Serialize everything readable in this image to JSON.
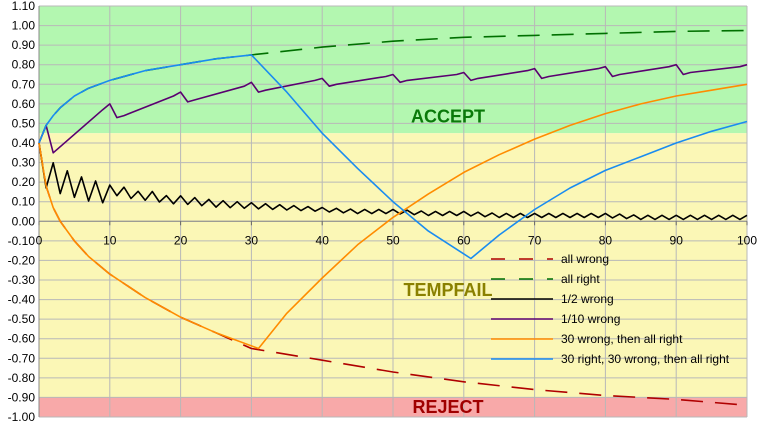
{
  "chart_data": {
    "type": "line",
    "title": "",
    "xlabel": "",
    "ylabel": "",
    "xlim": [
      0,
      100
    ],
    "ylim": [
      -1.0,
      1.1
    ],
    "x_ticks": [
      0,
      10,
      20,
      30,
      40,
      50,
      60,
      70,
      80,
      90,
      100
    ],
    "y_ticks": [
      1.1,
      1.0,
      0.9,
      0.8,
      0.7,
      0.6,
      0.5,
      0.4,
      0.3,
      0.2,
      0.1,
      0.0,
      -0.1,
      -0.2,
      -0.3,
      -0.4,
      -0.5,
      -0.6,
      -0.7,
      -0.8,
      -0.9,
      -1.0
    ],
    "grid": true,
    "legend_position": "bottom-right",
    "zones": [
      {
        "label": "ACCEPT",
        "from": 0.45,
        "to": 1.1,
        "color": "#b3f7b0",
        "text_color": "#0a7a0a",
        "label_y": 0.535
      },
      {
        "label": "TEMPFAIL",
        "from": -0.9,
        "to": 0.45,
        "color": "#fbf7b6",
        "text_color": "#8a8000",
        "label_y": -0.35
      },
      {
        "label": "REJECT",
        "from": -1.0,
        "to": -0.9,
        "color": "#f8a9a9",
        "text_color": "#a00000",
        "label_y": -0.95
      }
    ],
    "series": [
      {
        "name": "all wrong",
        "color": "#b00000",
        "dash": "long",
        "x": [
          0,
          1,
          2,
          3,
          5,
          7,
          10,
          15,
          20,
          25,
          30,
          40,
          50,
          60,
          70,
          80,
          90,
          100
        ],
        "y": [
          0.4,
          0.18,
          0.07,
          0.0,
          -0.1,
          -0.18,
          -0.27,
          -0.39,
          -0.49,
          -0.57,
          -0.65,
          -0.71,
          -0.77,
          -0.82,
          -0.86,
          -0.89,
          -0.91,
          -0.94
        ]
      },
      {
        "name": "all right",
        "color": "#007000",
        "dash": "long",
        "x": [
          0,
          1,
          2,
          3,
          5,
          7,
          10,
          15,
          20,
          25,
          30,
          40,
          50,
          60,
          70,
          80,
          90,
          100
        ],
        "y": [
          0.4,
          0.49,
          0.54,
          0.58,
          0.64,
          0.68,
          0.72,
          0.77,
          0.8,
          0.83,
          0.85,
          0.89,
          0.92,
          0.94,
          0.95,
          0.96,
          0.97,
          0.975
        ]
      },
      {
        "name": "1/2 wrong",
        "color": "#000000",
        "dash": "solid",
        "x": [
          0,
          1,
          2,
          3,
          4,
          5,
          6,
          7,
          8,
          9,
          10,
          12,
          14,
          16,
          18,
          20,
          25,
          30,
          35,
          40,
          45,
          50,
          55,
          60,
          65,
          70,
          75,
          80,
          85,
          90,
          95,
          100
        ],
        "y": [
          0.4,
          0.2,
          0.27,
          0.17,
          0.23,
          0.15,
          0.2,
          0.13,
          0.18,
          0.12,
          0.16,
          0.15,
          0.13,
          0.13,
          0.11,
          0.11,
          0.09,
          0.08,
          0.07,
          0.06,
          0.05,
          0.05,
          0.04,
          0.04,
          0.03,
          0.03,
          0.03,
          0.03,
          0.02,
          0.02,
          0.02,
          0.02
        ],
        "zigzag": 0.03
      },
      {
        "name": "1/10 wrong",
        "color": "#5a0070",
        "dash": "solid",
        "x": [
          0,
          1,
          2,
          9,
          10,
          11,
          12,
          19,
          20,
          21,
          22,
          29,
          30,
          31,
          32,
          39,
          40,
          41,
          42,
          49,
          50,
          51,
          52,
          59,
          60,
          61,
          62,
          69,
          70,
          71,
          72,
          79,
          80,
          81,
          82,
          89,
          90,
          91,
          92,
          99,
          100
        ],
        "y": [
          0.4,
          0.49,
          0.35,
          0.57,
          0.6,
          0.53,
          0.54,
          0.64,
          0.66,
          0.61,
          0.62,
          0.69,
          0.71,
          0.66,
          0.67,
          0.72,
          0.73,
          0.69,
          0.7,
          0.74,
          0.75,
          0.71,
          0.72,
          0.75,
          0.76,
          0.72,
          0.73,
          0.77,
          0.78,
          0.73,
          0.74,
          0.78,
          0.79,
          0.74,
          0.75,
          0.79,
          0.8,
          0.75,
          0.76,
          0.79,
          0.8
        ]
      },
      {
        "name": "30 wrong, then all right",
        "color": "#ff8c00",
        "dash": "solid",
        "x": [
          0,
          1,
          2,
          3,
          5,
          7,
          10,
          15,
          20,
          25,
          31,
          35,
          40,
          45,
          50,
          55,
          60,
          65,
          70,
          75,
          80,
          85,
          90,
          95,
          100
        ],
        "y": [
          0.4,
          0.18,
          0.07,
          0.0,
          -0.1,
          -0.18,
          -0.27,
          -0.39,
          -0.49,
          -0.57,
          -0.65,
          -0.47,
          -0.29,
          -0.12,
          0.02,
          0.14,
          0.25,
          0.34,
          0.42,
          0.49,
          0.55,
          0.6,
          0.64,
          0.67,
          0.7
        ]
      },
      {
        "name": "30 right, 30 wrong, then all right",
        "color": "#1a8cf0",
        "dash": "solid",
        "x": [
          0,
          1,
          2,
          3,
          5,
          7,
          10,
          15,
          20,
          25,
          30,
          35,
          40,
          45,
          50,
          55,
          61,
          65,
          70,
          75,
          80,
          85,
          90,
          95,
          100
        ],
        "y": [
          0.4,
          0.49,
          0.54,
          0.58,
          0.64,
          0.68,
          0.72,
          0.77,
          0.8,
          0.83,
          0.85,
          0.66,
          0.45,
          0.27,
          0.1,
          -0.05,
          -0.19,
          -0.07,
          0.06,
          0.17,
          0.26,
          0.33,
          0.4,
          0.46,
          0.51
        ]
      }
    ]
  }
}
